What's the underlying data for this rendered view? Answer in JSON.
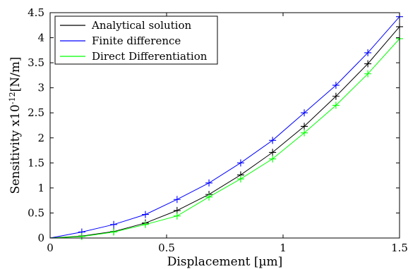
{
  "chart_data": {
    "type": "line",
    "xlabel": "Displacement [µm]",
    "ylabel": "Sensitivity x10",
    "ylabel_exp": "-12",
    "ylabel_unit": "[N/m]",
    "xlim": [
      0,
      1.5
    ],
    "ylim": [
      0,
      4.5
    ],
    "xticks": [
      0,
      0.5,
      1,
      1.5
    ],
    "xtick_labels": [
      "0",
      "0.5",
      "1",
      "1.5"
    ],
    "yticks": [
      0,
      0.5,
      1,
      1.5,
      2,
      2.5,
      3,
      3.5,
      4,
      4.5
    ],
    "ytick_labels": [
      "0",
      "0.5",
      "1",
      "1.5",
      "2",
      "2.5",
      "3",
      "3.5",
      "4",
      "4.5"
    ],
    "grid": false,
    "legend_position": "top-left",
    "series": [
      {
        "name": "Analytical solution",
        "color": "#000000",
        "x": [
          0,
          0.136,
          0.273,
          0.409,
          0.545,
          0.682,
          0.818,
          0.955,
          1.091,
          1.227,
          1.364,
          1.5
        ],
        "y": [
          0,
          0.04,
          0.13,
          0.3,
          0.55,
          0.87,
          1.26,
          1.71,
          2.23,
          2.83,
          3.48,
          4.22
        ]
      },
      {
        "name": "Finite difference",
        "color": "#0000ff",
        "x": [
          0,
          0.136,
          0.273,
          0.409,
          0.545,
          0.682,
          0.818,
          0.955,
          1.091,
          1.227,
          1.364,
          1.5
        ],
        "y": [
          0,
          0.12,
          0.27,
          0.47,
          0.77,
          1.1,
          1.5,
          1.95,
          2.5,
          3.05,
          3.7,
          4.42
        ]
      },
      {
        "name": "Direct Differentiation",
        "color": "#00ff00",
        "x": [
          0,
          0.136,
          0.273,
          0.409,
          0.545,
          0.682,
          0.818,
          0.955,
          1.091,
          1.227,
          1.364,
          1.5
        ],
        "y": [
          0,
          0.03,
          0.12,
          0.27,
          0.44,
          0.82,
          1.18,
          1.58,
          2.1,
          2.65,
          3.28,
          3.98
        ]
      }
    ]
  }
}
